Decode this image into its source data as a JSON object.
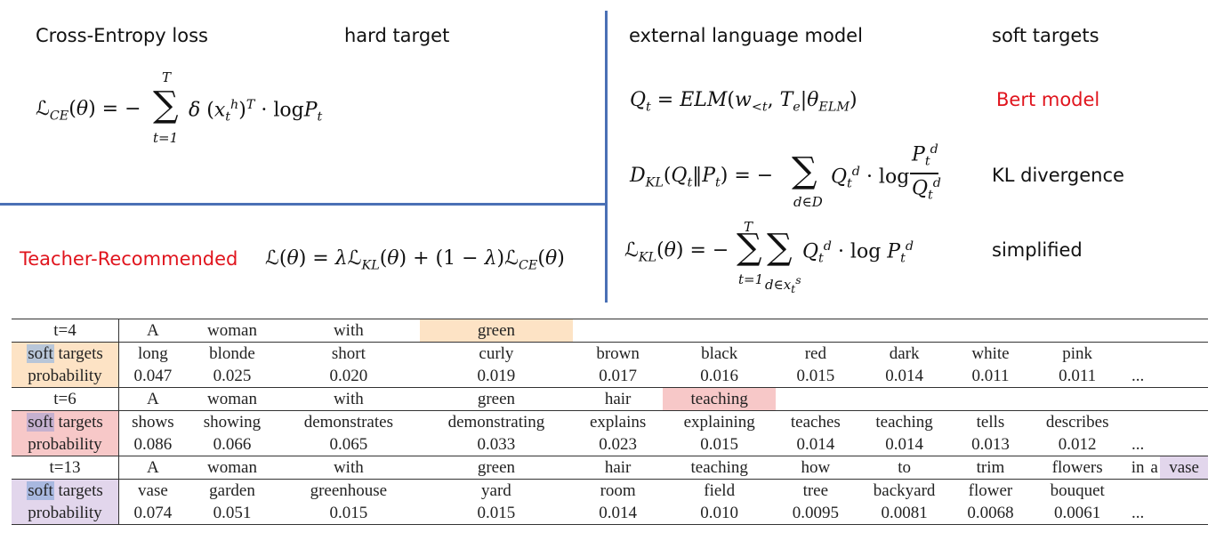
{
  "top_left": {
    "ce_label": "Cross-Entropy loss",
    "hard_label": "hard target",
    "teacher_label": "Teacher-Recommended"
  },
  "top_right": {
    "elm_label": "external language model",
    "soft_label": "soft targets",
    "bert_label": "Bert model",
    "kl_label": "KL divergence",
    "simplified_label": "simplified"
  },
  "colors": {
    "divider": "#4a70b5",
    "red_text": "#e0141d",
    "highlight_orange": "#fde3c5",
    "highlight_red": "#f7c8c8",
    "highlight_purple": "#e2d6ec"
  },
  "table": {
    "row_labels": {
      "soft_a": "soft",
      "soft_b": "targets",
      "prob": "probability",
      "ellipsis": "..."
    },
    "sections": [
      {
        "t": "t=4",
        "words": [
          "A",
          "woman",
          "with",
          "green"
        ],
        "soft": [
          "long",
          "blonde",
          "short",
          "curly",
          "brown",
          "black",
          "red",
          "dark",
          "white",
          "pink"
        ],
        "prob": [
          "0.047",
          "0.025",
          "0.020",
          "0.019",
          "0.017",
          "0.016",
          "0.015",
          "0.014",
          "0.011",
          "0.011"
        ]
      },
      {
        "t": "t=6",
        "words": [
          "A",
          "woman",
          "with",
          "green",
          "hair",
          "teaching"
        ],
        "soft": [
          "shows",
          "showing",
          "demonstrates",
          "demonstrating",
          "explains",
          "explaining",
          "teaches",
          "teaching",
          "tells",
          "describes"
        ],
        "prob": [
          "0.086",
          "0.066",
          "0.065",
          "0.033",
          "0.023",
          "0.015",
          "0.014",
          "0.014",
          "0.013",
          "0.012"
        ]
      },
      {
        "t": "t=13",
        "words": [
          "A",
          "woman",
          "with",
          "green",
          "hair",
          "teaching",
          "how",
          "to",
          "trim",
          "flowers",
          "in",
          "a",
          "vase"
        ],
        "soft": [
          "vase",
          "garden",
          "greenhouse",
          "yard",
          "room",
          "field",
          "tree",
          "backyard",
          "flower",
          "bouquet"
        ],
        "prob": [
          "0.074",
          "0.051",
          "0.015",
          "0.015",
          "0.014",
          "0.010",
          "0.0095",
          "0.0081",
          "0.0068",
          "0.0061"
        ]
      }
    ]
  }
}
